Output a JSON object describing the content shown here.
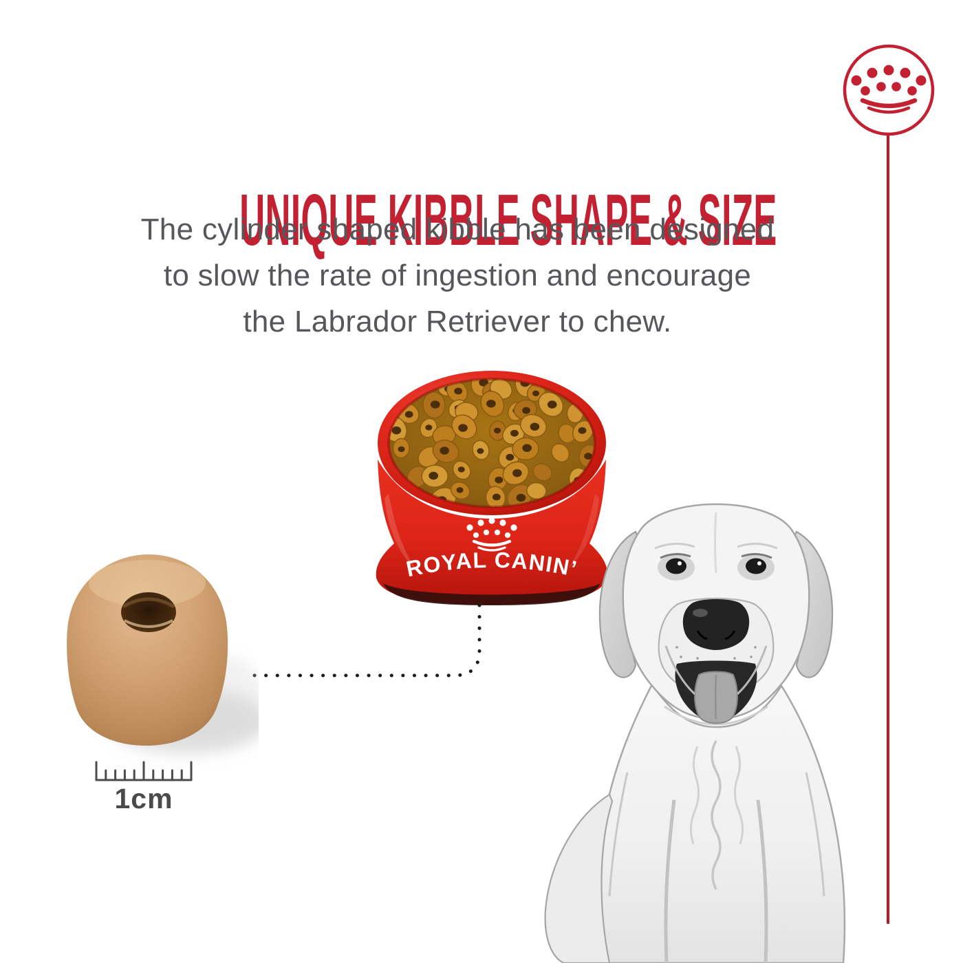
{
  "heading": {
    "title": "UNIQUE KIBBLE SHAPE & SIZE",
    "color": "#C32031"
  },
  "description": {
    "lines": [
      "The cylinder shaped kibble has been designed",
      "to slow the rate of ingestion and encourage",
      "the Labrador Retriever to chew."
    ],
    "color": "#56575A"
  },
  "brand_mark": {
    "icon": "royal-canin-crown-icon",
    "color": "#C32031"
  },
  "bowl": {
    "brand_label": "ROYAL CANIN’",
    "crown_icon": "royal-canin-crown-icon",
    "bowl_color": "#E2261C",
    "kibble_color": "#C68B29"
  },
  "kibble_closeup": {
    "illustration": "cylinder-kibble-piece",
    "color": "#CD9C6B",
    "hole_color": "#4A2E12"
  },
  "connector": {
    "style": "dotted",
    "color": "#1C1C1C"
  },
  "scale_ruler": {
    "label": "1cm",
    "color": "#4A4B4D"
  },
  "dog": {
    "illustration": "labrador-retriever-pencil-sketch"
  }
}
